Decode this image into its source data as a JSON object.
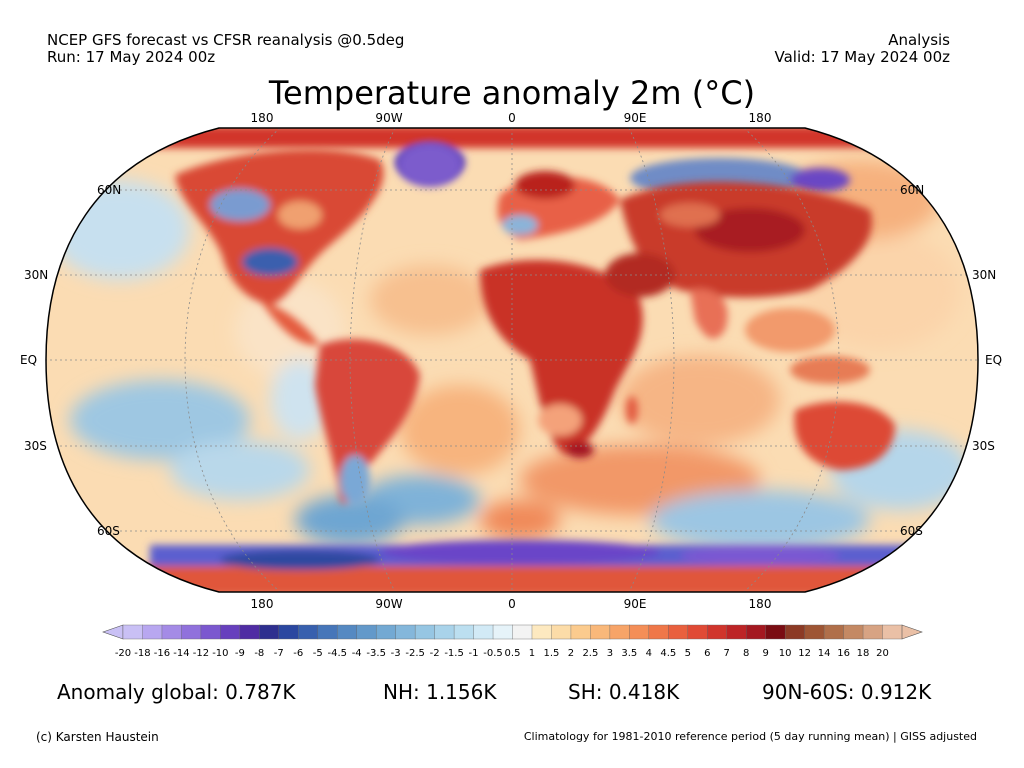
{
  "header": {
    "line1_left": "NCEP GFS forecast vs CFSR reanalysis @0.5deg",
    "line2_left": "Run: 17 May 2024 00z",
    "line1_right": "Analysis",
    "line2_right": "Valid: 17 May 2024 00z"
  },
  "title": "Temperature anomaly 2m (°C)",
  "lon_labels_top": [
    "180",
    "90W",
    "0",
    "90E",
    "180"
  ],
  "lon_labels_bottom": [
    "180",
    "90W",
    "0",
    "90E",
    "180"
  ],
  "lat_labels": [
    "60N",
    "30N",
    "EQ",
    "30S",
    "60S"
  ],
  "colorbar": {
    "labels": [
      "-20",
      "-18",
      "-16",
      "-14",
      "-12",
      "-10",
      "-9",
      "-8",
      "-7",
      "-6",
      "-5",
      "-4.5",
      "-4",
      "-3.5",
      "-3",
      "-2.5",
      "-2",
      "-1.5",
      "-1",
      "-0.5",
      "0.5",
      "1",
      "1.5",
      "2",
      "2.5",
      "3",
      "3.5",
      "4",
      "4.5",
      "5",
      "6",
      "7",
      "8",
      "9",
      "10",
      "12",
      "14",
      "16",
      "18",
      "20"
    ],
    "colors": [
      "#c9c0f5",
      "#b8a7f0",
      "#a48be6",
      "#9071dc",
      "#7b58cf",
      "#6740bd",
      "#4f2ca3",
      "#2e2f8f",
      "#2b47a0",
      "#3860ae",
      "#4676b9",
      "#5589c2",
      "#6399ca",
      "#73a9d3",
      "#84b7db",
      "#96c6e3",
      "#a9d3ea",
      "#bcdff0",
      "#d2eaf6",
      "#e6f3f9",
      "#f3f3f3",
      "#fde9c0",
      "#fcdca8",
      "#fbcb8e",
      "#f9b87a",
      "#f7a468",
      "#f48e57",
      "#ef7749",
      "#e9603e",
      "#e04a35",
      "#d0352c",
      "#bd2426",
      "#a41820",
      "#7a0d13",
      "#8c3a25",
      "#9e5534",
      "#b06f4a",
      "#c48964",
      "#d7a383",
      "#eac0a6"
    ]
  },
  "stats": {
    "global": "Anomaly global: 0.787K",
    "nh": "NH: 1.156K",
    "sh": "SH: 0.418K",
    "arctic": "90N-60S: 0.912K"
  },
  "footer": {
    "left": "(c) Karsten Haustein",
    "right": "Climatology for 1981-2010 reference period (5 day running mean) | GISS adjusted"
  }
}
